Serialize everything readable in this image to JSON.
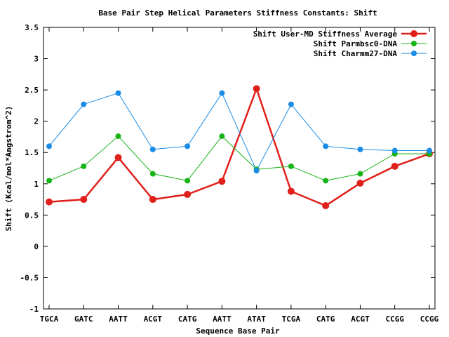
{
  "chart_data": {
    "type": "line",
    "title": "Base Pair Step Helical Parameters Stiffness Constants: Shift",
    "xlabel": "Sequence Base Pair",
    "ylabel": "Shift (Kcal/mol*Angstrom^2)",
    "ylim": [
      -1,
      3.5
    ],
    "yticks": [
      "-1",
      "-0.5",
      "0",
      "0.5",
      "1",
      "1.5",
      "2",
      "2.5",
      "3",
      "3.5"
    ],
    "categories": [
      "TGCA",
      "GATC",
      "AATT",
      "ACGT",
      "CATG",
      "AATT",
      "ATAT",
      "TCGA",
      "CATG",
      "ACGT",
      "CCGG",
      "CCGG"
    ],
    "legend_position": "top-right",
    "grid": false,
    "series": [
      {
        "name": "Shift User-MD Stiffness Average",
        "color": "#e0201a",
        "values": [
          0.71,
          0.75,
          1.42,
          0.75,
          0.83,
          1.04,
          2.52,
          0.88,
          0.65,
          1.01,
          1.28,
          1.48
        ]
      },
      {
        "name": "Shift Parmbsc0-DNA",
        "color": "#17b417",
        "values": [
          1.05,
          1.28,
          1.76,
          1.16,
          1.05,
          1.76,
          1.23,
          1.28,
          1.05,
          1.16,
          1.48,
          1.48
        ]
      },
      {
        "name": "Shift Charmm27-DNA",
        "color": "#1a8ce6",
        "values": [
          1.6,
          2.27,
          2.45,
          1.55,
          1.6,
          2.45,
          1.21,
          2.27,
          1.6,
          1.55,
          1.53,
          1.53
        ]
      }
    ]
  }
}
